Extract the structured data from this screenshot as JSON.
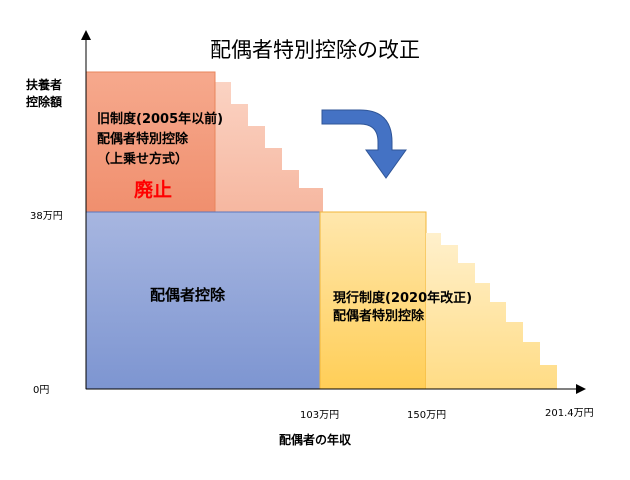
{
  "title": "配偶者特別控除の改正",
  "y_axis": {
    "label_lines": [
      "扶養者",
      "控除額"
    ],
    "ticks": [
      "38万円",
      "0円"
    ]
  },
  "x_axis": {
    "label": "配偶者の年収",
    "ticks": [
      "103万円",
      "150万円",
      "201.4万円"
    ]
  },
  "regions": {
    "old_special": {
      "lines": [
        "旧制度(2005年以前)",
        "配偶者特別控除",
        "（上乗せ方式）"
      ],
      "status": "廃止",
      "fill": "#f4a487"
    },
    "spouse_deduction": {
      "label": "配偶者控除",
      "fill": "#8fa4d8"
    },
    "new_special": {
      "lines": [
        "現行制度(2020年改正)",
        "配偶者特別控除"
      ],
      "fill": "#ffd77a"
    }
  },
  "arrow_color": "#4472c4",
  "status_color": "#ff0000"
}
